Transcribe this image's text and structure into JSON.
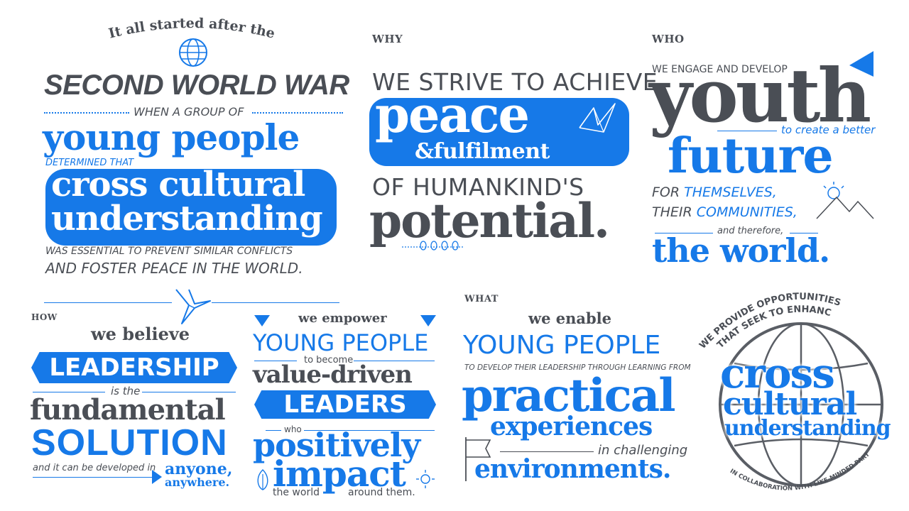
{
  "colors": {
    "blue": "#1679e8",
    "grey": "#4a4e55",
    "white": "#ffffff"
  },
  "origin": {
    "intro": "It all started after the",
    "war": "SECOND WORLD WAR",
    "when": "WHEN A GROUP OF",
    "young": "young people",
    "determined": "DETERMINED THAT",
    "cross": "cross cultural",
    "understanding": "understanding",
    "essential": "WAS ESSENTIAL TO PREVENT SIMILAR CONFLICTS",
    "foster": "AND FOSTER PEACE IN THE WORLD.",
    "icon": "globe-icon"
  },
  "why": {
    "label": "WHY",
    "strive": "WE STRIVE TO ACHIEVE",
    "peace": "peace",
    "fulfilment": "&fulfilment",
    "humankind": "OF HUMANKIND'S",
    "potential": "potential.",
    "icon": "paper-bird-icon"
  },
  "who": {
    "label": "WHO",
    "engage": "WE ENGAGE AND DEVELOP",
    "youth": "youth",
    "create": "to create a better",
    "future": "future",
    "for": "FOR",
    "themselves": "THEMSELVES,",
    "their": "THEIR",
    "communities": "COMMUNITIES,",
    "therefore": "and therefore,",
    "world": "the world.",
    "icon": "mountain-sun-icon"
  },
  "how": {
    "label": "HOW",
    "believe": "we believe",
    "leadership": "LEADERSHIP",
    "isthe": "is the",
    "fundamental": "fundamental",
    "solution": "SOLUTION",
    "developed": "and it can be developed in",
    "anyone": "anyone,",
    "anywhere": "anywhere."
  },
  "empower": {
    "we": "we empower",
    "young": "YOUNG PEOPLE",
    "tobecome": "to become",
    "value": "value-driven",
    "leaders": "LEADERS",
    "who": "who",
    "positively": "positively",
    "impact": "impact",
    "theworld": "the world",
    "around": "around them."
  },
  "what": {
    "label": "WHAT",
    "enable": "we enable",
    "young": "YOUNG PEOPLE",
    "develop": "TO DEVELOP THEIR LEADERSHIP THROUGH LEARNING FROM",
    "practical": "practical",
    "experiences": "experiences",
    "challenging": "in challenging",
    "environments": "environments."
  },
  "globe": {
    "top1": "WE PROVIDE OPPORTUNITIES",
    "top2": "THAT SEEK TO ENHANCE",
    "cross": "cross",
    "cultural": "cultural",
    "understanding": "understanding",
    "bottom": "IN COLLABORATION WITH LIKE-MINDED PARTNERS."
  }
}
